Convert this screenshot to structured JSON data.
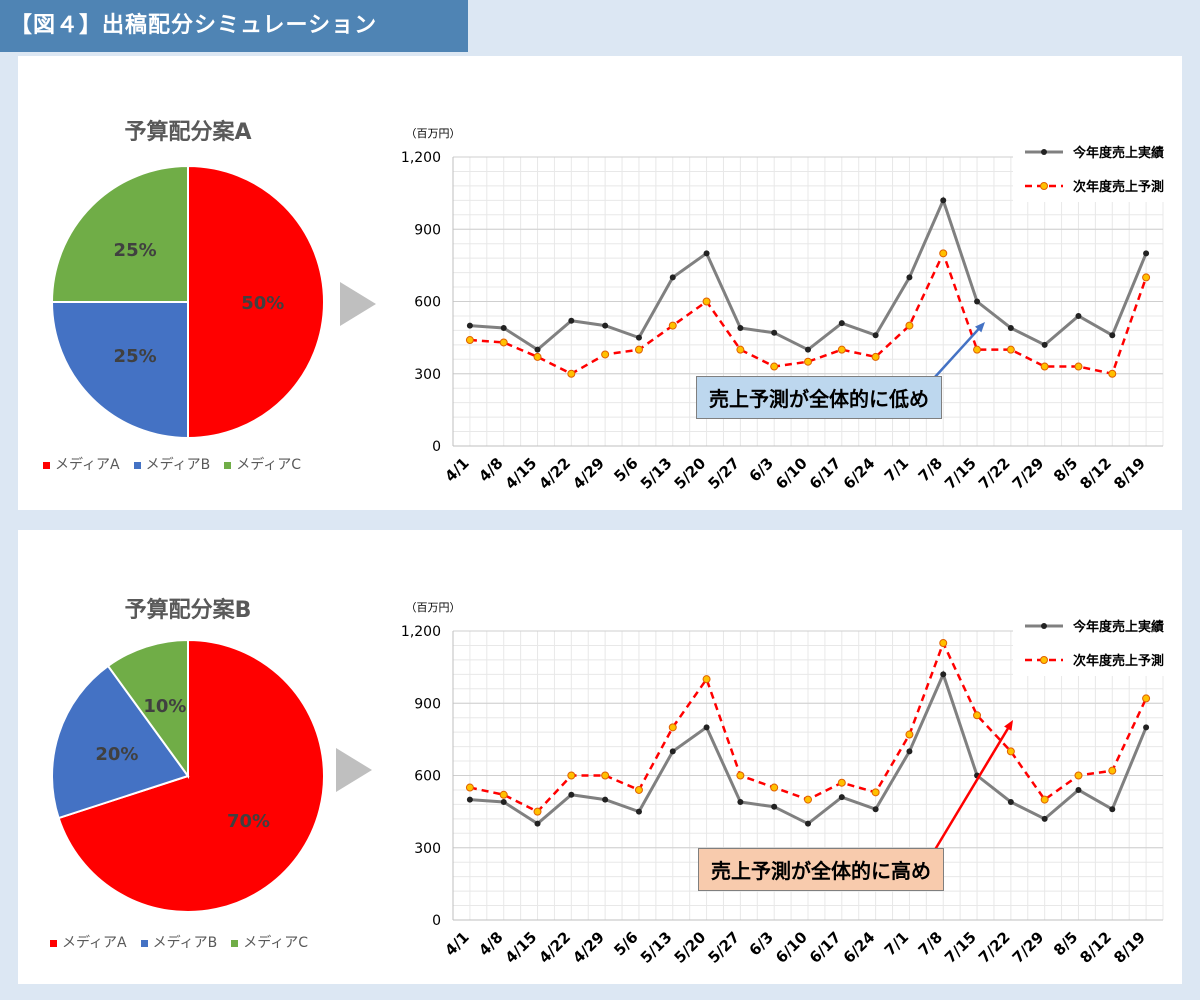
{
  "header": {
    "title": "【図４】出稿配分シミュレーション"
  },
  "colors": {
    "red": "#ff0000",
    "blue": "#4472c4",
    "green": "#70ad47",
    "actual_line": "#808080",
    "forecast_line": "#ff0000",
    "forecast_marker": "#ffc000",
    "arrow_triangle": "#bfbfbf",
    "callout_low_bg": "#bdd7ee",
    "callout_high_bg": "#f8cbad"
  },
  "panels": [
    {
      "pie_title": "予算配分案A",
      "callout": "売上予測が全体的に低め"
    },
    {
      "pie_title": "予算配分案B",
      "callout": "売上予測が全体的に高め"
    }
  ],
  "chart_data": [
    {
      "type": "pie",
      "title": "予算配分案A",
      "labels": [
        "メディアA",
        "メディアB",
        "メディアC"
      ],
      "values": [
        50,
        25,
        25
      ],
      "value_labels": [
        "50%",
        "25%",
        "25%"
      ],
      "legend": "bottom"
    },
    {
      "type": "line",
      "ylabel": "（百万円）",
      "ylim": [
        0,
        1200
      ],
      "yticks": [
        0,
        300,
        600,
        900,
        1200
      ],
      "ytick_labels": [
        "0",
        "300",
        "600",
        "900",
        "1,200"
      ],
      "grid": true,
      "legend": "top-right",
      "categories": [
        "4/1",
        "4/8",
        "4/15",
        "4/22",
        "4/29",
        "5/6",
        "5/13",
        "5/20",
        "5/27",
        "6/3",
        "6/10",
        "6/17",
        "6/24",
        "7/1",
        "7/8",
        "7/15",
        "7/22",
        "7/29",
        "8/5",
        "8/12",
        "8/19"
      ],
      "series": [
        {
          "name": "今年度売上実績",
          "values": [
            500,
            490,
            400,
            520,
            500,
            450,
            700,
            800,
            490,
            470,
            400,
            510,
            460,
            700,
            1020,
            600,
            490,
            420,
            540,
            460,
            800
          ]
        },
        {
          "name": "次年度売上予測",
          "values": [
            440,
            430,
            370,
            300,
            380,
            400,
            500,
            600,
            400,
            330,
            350,
            400,
            370,
            500,
            800,
            400,
            400,
            330,
            330,
            300,
            700
          ]
        }
      ]
    },
    {
      "type": "pie",
      "title": "予算配分案B",
      "labels": [
        "メディアA",
        "メディアB",
        "メディアC"
      ],
      "values": [
        70,
        20,
        10
      ],
      "value_labels": [
        "70%",
        "20%",
        "10%"
      ],
      "legend": "bottom"
    },
    {
      "type": "line",
      "ylabel": "（百万円）",
      "ylim": [
        0,
        1200
      ],
      "yticks": [
        0,
        300,
        600,
        900,
        1200
      ],
      "ytick_labels": [
        "0",
        "300",
        "600",
        "900",
        "1,200"
      ],
      "grid": true,
      "legend": "top-right",
      "categories": [
        "4/1",
        "4/8",
        "4/15",
        "4/22",
        "4/29",
        "5/6",
        "5/13",
        "5/20",
        "5/27",
        "6/3",
        "6/10",
        "6/17",
        "6/24",
        "7/1",
        "7/8",
        "7/15",
        "7/22",
        "7/29",
        "8/5",
        "8/12",
        "8/19"
      ],
      "series": [
        {
          "name": "今年度売上実績",
          "values": [
            500,
            490,
            400,
            520,
            500,
            450,
            700,
            800,
            490,
            470,
            400,
            510,
            460,
            700,
            1020,
            600,
            490,
            420,
            540,
            460,
            800
          ]
        },
        {
          "name": "次年度売上予測",
          "values": [
            550,
            520,
            450,
            600,
            600,
            540,
            800,
            1000,
            600,
            550,
            500,
            570,
            530,
            770,
            1150,
            850,
            700,
            500,
            600,
            620,
            920
          ]
        }
      ]
    }
  ]
}
